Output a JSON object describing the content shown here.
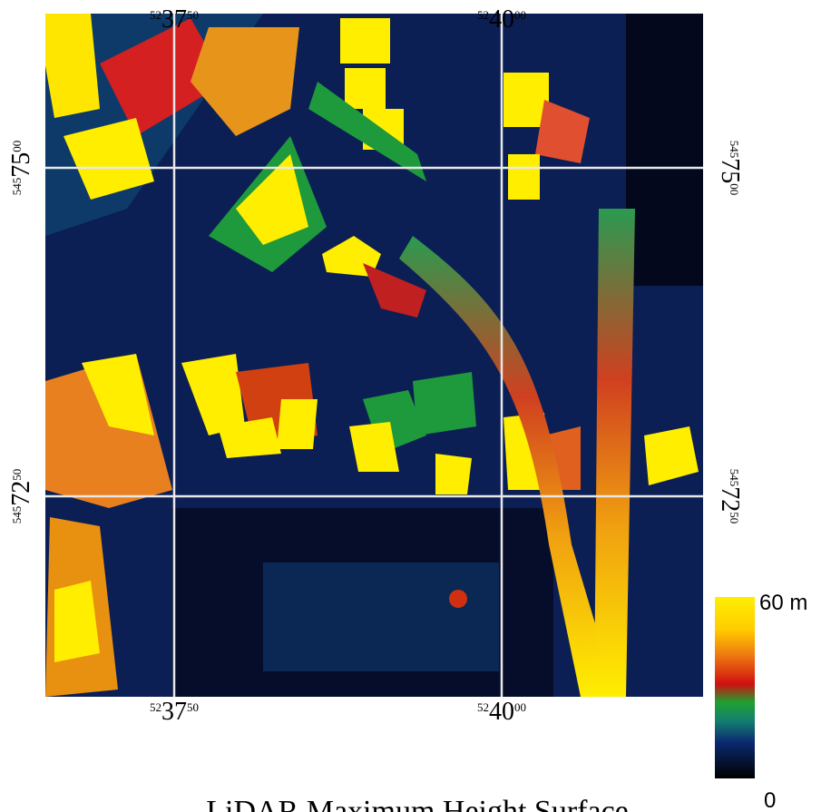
{
  "map": {
    "title": "LiDAR Maximum Height Surface",
    "colorbar": {
      "top_label": "60 m",
      "bottom_label": "0"
    },
    "grid_labels": {
      "top": [
        {
          "lead": "52",
          "main": "37",
          "tail": "50"
        },
        {
          "lead": "52",
          "main": "40",
          "tail": "00"
        }
      ],
      "bottom": [
        {
          "lead": "52",
          "main": "37",
          "tail": "50"
        },
        {
          "lead": "52",
          "main": "40",
          "tail": "00"
        }
      ],
      "left": [
        {
          "lead": "545",
          "main": "75",
          "tail": "00"
        },
        {
          "lead": "545",
          "main": "72",
          "tail": "50"
        }
      ],
      "right": [
        {
          "lead": "545",
          "main": "75",
          "tail": "00"
        },
        {
          "lead": "545",
          "main": "72",
          "tail": "50"
        }
      ]
    }
  }
}
